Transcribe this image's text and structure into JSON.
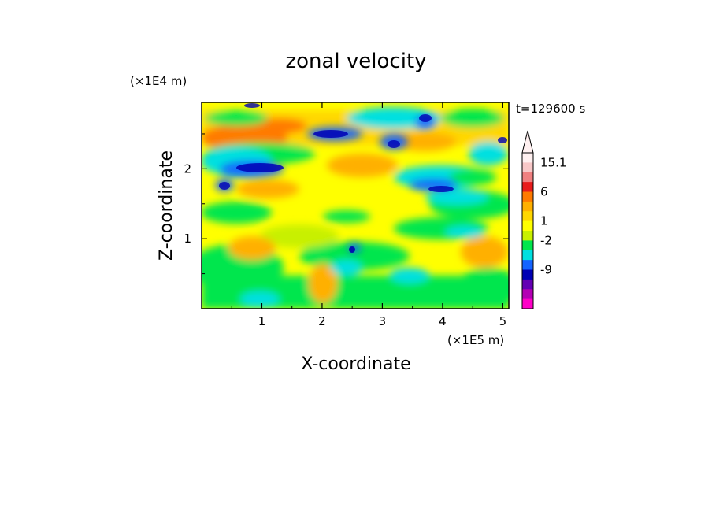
{
  "chart_data": {
    "type": "heatmap",
    "title": "zonal velocity",
    "xlabel": "X-coordinate",
    "ylabel": "Z-coordinate",
    "x_scale_label": "(×1E5 m)",
    "y_scale_label": "(×1E4 m)",
    "time_label": "t=129600 s",
    "xlim": [
      0,
      5.1
    ],
    "ylim": [
      0,
      2.95
    ],
    "x_ticks": [
      "1",
      "2",
      "3",
      "4",
      "5"
    ],
    "y_ticks": [
      "1",
      "2"
    ],
    "colorbar": {
      "levels": [
        "15.1",
        "6",
        "1",
        "-2",
        "-9"
      ],
      "colors": [
        "#fff0f0",
        "#f8c8c8",
        "#f08080",
        "#e81c1c",
        "#ff7a00",
        "#ffb000",
        "#ffd700",
        "#ffff00",
        "#c8f000",
        "#00e64d",
        "#00e0e0",
        "#1464ff",
        "#0000b4",
        "#6400b4",
        "#b400b4",
        "#ff00c8"
      ]
    }
  }
}
